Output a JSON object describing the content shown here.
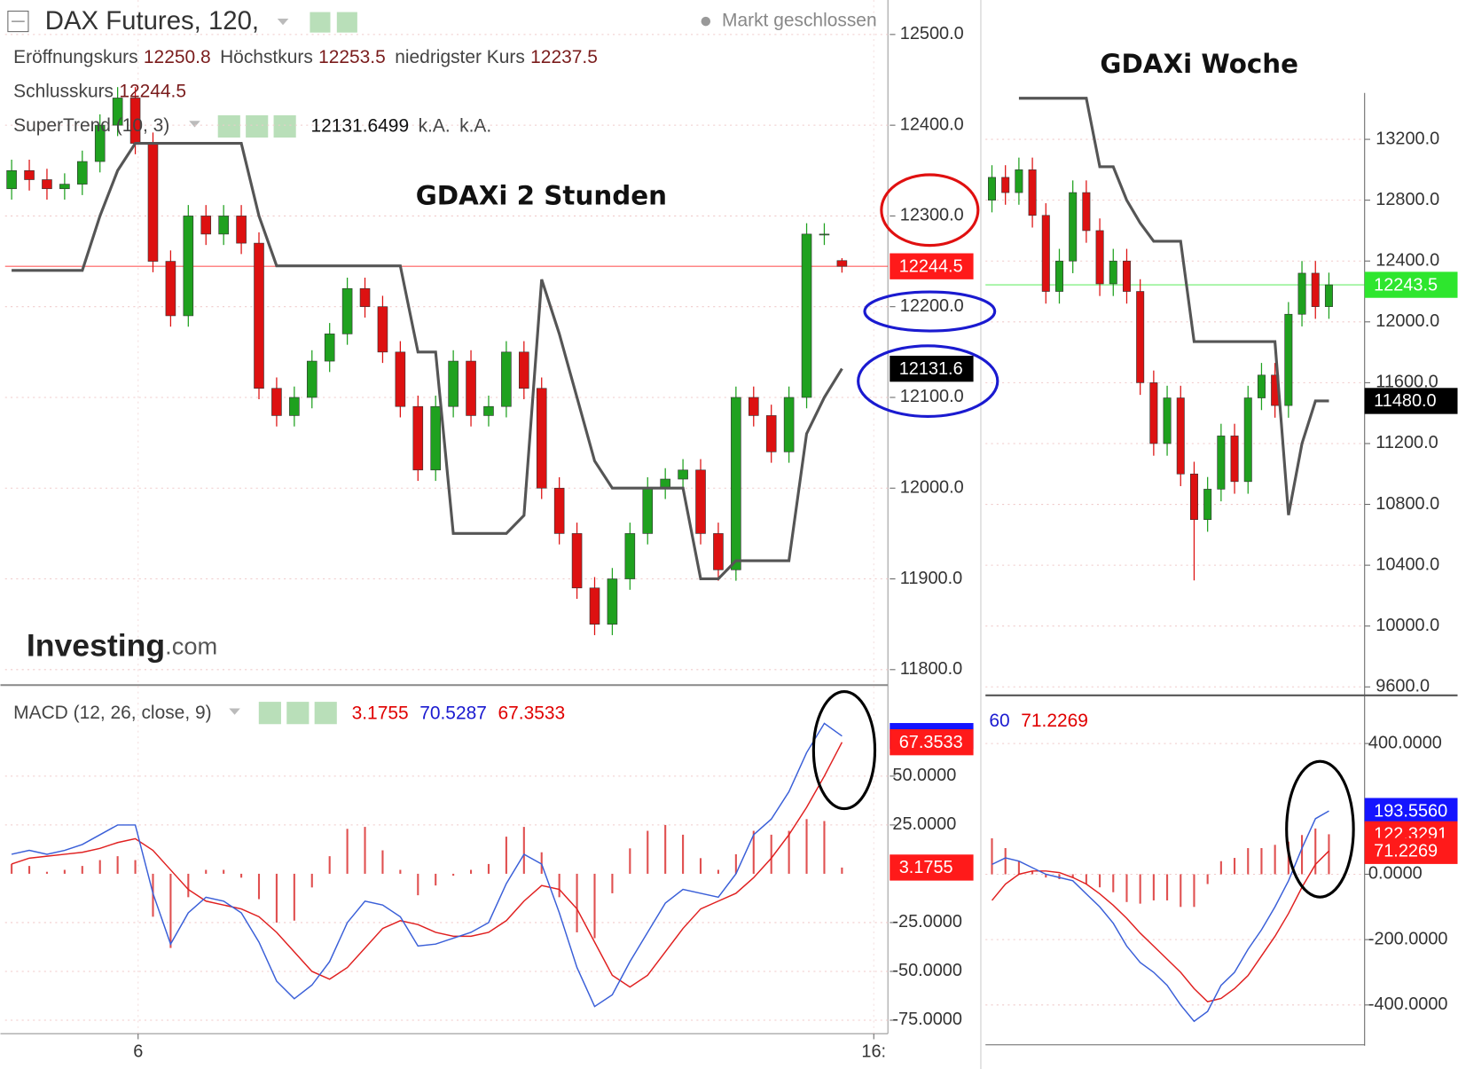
{
  "chart_data": [
    {
      "type": "candlestick",
      "title": "GDAXi 2 Stunden",
      "symbol": "DAX Futures, 120,",
      "status": "Markt geschlossen",
      "ohlc_readout": [
        {
          "label": "Eröffnungskurs",
          "value": 12250.8
        },
        {
          "label": "Höchstkurs",
          "value": 12253.5
        },
        {
          "label": "niedrigster Kurs",
          "value": 12237.5
        },
        {
          "label": "Schlusskurs",
          "value": 12244.5
        }
      ],
      "indicator": {
        "name": "SuperTrend (10, 3)",
        "value": 12131.6499,
        "notes": [
          "k.A.",
          "k.A."
        ]
      },
      "logo": {
        "brand": "Investing",
        "suffix": ".com"
      },
      "up_color": "#1fa11f",
      "down_color": "#dd1111",
      "x": [
        0,
        1,
        2,
        3,
        4,
        5,
        6,
        7,
        8,
        9,
        10,
        11,
        12,
        13,
        14,
        15,
        16,
        17,
        18,
        19,
        20,
        21,
        22,
        23,
        24,
        25,
        26,
        27,
        28,
        29,
        30,
        31,
        32,
        33,
        34,
        35,
        36,
        37,
        38,
        39,
        40,
        41,
        42,
        43,
        44,
        45,
        46,
        47
      ],
      "xlim": [
        -0.37,
        49.6
      ],
      "xticks": [
        {
          "value": 7.16,
          "label": "6"
        },
        {
          "value": 48.8,
          "label": "16:"
        }
      ],
      "open": [
        12330,
        12350,
        12340,
        12330,
        12335,
        12360,
        12400,
        12430,
        12380,
        12250,
        12190,
        12300,
        12280,
        12300,
        12270,
        12110,
        12080,
        12100,
        12140,
        12170,
        12220,
        12200,
        12150,
        12090,
        12020,
        12090,
        12140,
        12080,
        12090,
        12150,
        12110,
        12000,
        11950,
        11890,
        11850,
        11900,
        11950,
        12000,
        12010,
        12020,
        11950,
        11910,
        12100,
        12080,
        12040,
        12100,
        12280,
        12250.8
      ],
      "high": [
        12362,
        12362,
        12352,
        12347,
        12372,
        12412,
        12442,
        12442,
        12392,
        12262,
        12312,
        12312,
        12312,
        12312,
        12282,
        12122,
        12112,
        12152,
        12182,
        12232,
        12232,
        12212,
        12162,
        12102,
        12102,
        12152,
        12152,
        12102,
        12162,
        12162,
        12122,
        12012,
        11962,
        11902,
        11912,
        11962,
        12012,
        12022,
        12032,
        12032,
        11962,
        12112,
        12112,
        12092,
        12112,
        12292,
        12292,
        12253.5
      ],
      "low": [
        12318,
        12328,
        12318,
        12318,
        12323,
        12348,
        12388,
        12368,
        12238,
        12178,
        12178,
        12268,
        12268,
        12258,
        12098,
        12068,
        12068,
        12088,
        12128,
        12158,
        12188,
        12138,
        12078,
        12008,
        12008,
        12078,
        12068,
        12068,
        12078,
        12098,
        11988,
        11938,
        11878,
        11838,
        11838,
        11888,
        11938,
        11988,
        11998,
        11938,
        11898,
        11898,
        12068,
        12028,
        12028,
        12088,
        12268,
        12237.5
      ],
      "close": [
        12350,
        12340,
        12330,
        12335,
        12360,
        12400,
        12430,
        12380,
        12250,
        12190,
        12300,
        12280,
        12300,
        12270,
        12110,
        12080,
        12100,
        12140,
        12170,
        12220,
        12200,
        12150,
        12090,
        12020,
        12090,
        12140,
        12080,
        12090,
        12150,
        12110,
        12000,
        11950,
        11890,
        11850,
        11900,
        11950,
        12000,
        12010,
        12020,
        11950,
        11910,
        12100,
        12080,
        12040,
        12100,
        12280,
        12280,
        12244.5
      ],
      "supertrend": {
        "color": "#555555",
        "values": [
          12240,
          12240,
          12240,
          12240,
          12240,
          12300,
          12350,
          12380,
          12380,
          12380,
          12380,
          12380,
          12380,
          12380,
          12300,
          12245,
          12245,
          12245,
          12245,
          12245,
          12245,
          12245,
          12245,
          12150,
          12150,
          11950,
          11950,
          11950,
          11950,
          11970,
          12230,
          12170,
          12100,
          12030,
          12000,
          12000,
          12000,
          12000,
          12000,
          11900,
          11900,
          11920,
          11920,
          11920,
          11920,
          12060,
          12100,
          12131.6499
        ]
      },
      "ylim": [
        11785,
        12538
      ],
      "yticks": [
        {
          "value": 11800,
          "label": "11800.0"
        },
        {
          "value": 11900,
          "label": "11900.0"
        },
        {
          "value": 12000,
          "label": "12000.0"
        },
        {
          "value": 12100,
          "label": "12100.0"
        },
        {
          "value": 12200,
          "label": "12200.0"
        },
        {
          "value": 12300,
          "label": "12300.0"
        },
        {
          "value": 12400,
          "label": "12400.0"
        },
        {
          "value": 12500,
          "label": "12500.0"
        }
      ],
      "grid": true,
      "price_markers": [
        {
          "value": 12244.5,
          "color": "#ff1a1a",
          "line": true
        },
        {
          "value": 12131.6,
          "color": "#000000"
        }
      ],
      "macd": {
        "label": "MACD (12, 26, close, 9)",
        "readout": [
          3.1755,
          70.5287,
          67.3533
        ],
        "readout_colors": [
          "#e00000",
          "#1a1ad0",
          "#e00000"
        ],
        "histogram": {
          "color": "#e05050",
          "values": [
            5,
            4,
            1,
            2,
            4,
            7,
            9,
            7,
            -22,
            -38,
            -12,
            2,
            2,
            -2,
            -13,
            -25,
            -24,
            -7,
            9,
            23,
            24,
            12,
            2,
            -11,
            -6,
            -1,
            2,
            5,
            19,
            24,
            11,
            -12,
            -30,
            -33,
            -10,
            13,
            22,
            25,
            20,
            8,
            2,
            10,
            22,
            20,
            22,
            28,
            27,
            3.1755
          ]
        },
        "macd_line": {
          "color": "#3a5fd8",
          "values": [
            10,
            12,
            10,
            12,
            15,
            20,
            25,
            25,
            -10,
            -36,
            -20,
            -12,
            -14,
            -20,
            -35,
            -55,
            -64,
            -57,
            -45,
            -25,
            -14,
            -16,
            -22,
            -37,
            -36,
            -33,
            -30,
            -25,
            -5,
            10,
            5,
            -20,
            -48,
            -68,
            -62,
            -45,
            -30,
            -15,
            -8,
            -10,
            -12,
            0,
            20,
            28,
            42,
            62,
            77,
            70.5287
          ]
        },
        "signal": {
          "color": "#e02020",
          "values": [
            5,
            8,
            9,
            10,
            11,
            13,
            16,
            18,
            12,
            2,
            -8,
            -14,
            -16,
            -18,
            -22,
            -30,
            -40,
            -50,
            -54,
            -48,
            -38,
            -28,
            -24,
            -26,
            -30,
            -32,
            -32,
            -30,
            -24,
            -14,
            -6,
            -8,
            -18,
            -35,
            -52,
            -58,
            -52,
            -40,
            -28,
            -18,
            -14,
            -10,
            -2,
            8,
            20,
            34,
            50,
            67.3533
          ]
        },
        "ylim": [
          -81.9,
          95.2
        ],
        "yticks": [
          {
            "value": 50,
            "label": "50.0000"
          },
          {
            "value": 25,
            "label": "25.0000"
          },
          {
            "value": -25,
            "label": "-25.0000"
          },
          {
            "value": -50,
            "label": "-50.0000"
          },
          {
            "value": -75,
            "label": "-75.0000"
          }
        ],
        "markers": [
          {
            "value": 70.5287,
            "color": "#1414ff"
          },
          {
            "value": 67.3533,
            "color": "#ff1a1a"
          },
          {
            "value": 3.1755,
            "color": "#ff1a1a"
          }
        ]
      }
    },
    {
      "type": "candlestick",
      "title": "GDAXi Woche",
      "up_color": "#1fa11f",
      "down_color": "#dd1111",
      "x": [
        0,
        1,
        2,
        3,
        4,
        5,
        6,
        7,
        8,
        9,
        10,
        11,
        12,
        13,
        14,
        15,
        16,
        17,
        18,
        19,
        20,
        21,
        22,
        23,
        24,
        25
      ],
      "xlim": [
        -0.48,
        27.65
      ],
      "open": [
        12800,
        12950,
        12850,
        13000,
        12700,
        12200,
        12400,
        12850,
        12600,
        12250,
        12400,
        12200,
        11600,
        11200,
        11500,
        11000,
        10700,
        10900,
        11250,
        10950,
        11500,
        11650,
        11450,
        12050,
        12320,
        12100
      ],
      "high": [
        13030,
        13030,
        13080,
        13080,
        12780,
        12480,
        12930,
        12930,
        12680,
        12480,
        12480,
        12280,
        11680,
        11580,
        11580,
        11080,
        10980,
        11330,
        11330,
        11580,
        11730,
        11730,
        12130,
        12400,
        12400,
        12323.5
      ],
      "low": [
        12720,
        12770,
        12770,
        12620,
        12120,
        12120,
        12320,
        12520,
        12170,
        12170,
        12120,
        11520,
        11120,
        11120,
        10920,
        10300,
        10620,
        10820,
        10870,
        10870,
        11420,
        11370,
        11370,
        11970,
        12020,
        12020
      ],
      "close": [
        12950,
        12850,
        13000,
        12700,
        12200,
        12400,
        12850,
        12600,
        12250,
        12400,
        12200,
        11600,
        11200,
        11500,
        11000,
        10700,
        10900,
        11250,
        10950,
        11500,
        11650,
        11450,
        12050,
        12320,
        12100,
        12243.5
      ],
      "supertrend": {
        "color": "#555555",
        "values": [
          null,
          null,
          13470,
          13470,
          13470,
          13470,
          13470,
          13470,
          13020,
          13020,
          12800,
          12650,
          12530,
          12530,
          12530,
          11870,
          11870,
          11870,
          11870,
          11870,
          11870,
          11870,
          10730,
          11200,
          11480,
          11480
        ]
      },
      "ylim": [
        9563,
        13505
      ],
      "yticks": [
        {
          "value": 9600,
          "label": "9600.0"
        },
        {
          "value": 10000,
          "label": "10000.0"
        },
        {
          "value": 10400,
          "label": "10400.0"
        },
        {
          "value": 10800,
          "label": "10800.0"
        },
        {
          "value": 11200,
          "label": "11200.0"
        },
        {
          "value": 11600,
          "label": "11600.0"
        },
        {
          "value": 12000,
          "label": "12000.0"
        },
        {
          "value": 12400,
          "label": "12400.0"
        },
        {
          "value": 12800,
          "label": "12800.0"
        },
        {
          "value": 13200,
          "label": "13200.0"
        }
      ],
      "grid": true,
      "price_markers": [
        {
          "value": 12243.5,
          "color": "#2ee62e",
          "line": true
        },
        {
          "value": 11480,
          "label": "11480.0",
          "color": "#000000"
        }
      ],
      "macd": {
        "readout_clipped": "60",
        "readout_clipped_color": "#1a1ad0",
        "readout": [
          71.2269
        ],
        "readout_colors": [
          "#e00000"
        ],
        "histogram": {
          "color": "#e05050",
          "values": [
            110,
            80,
            40,
            10,
            -10,
            -15,
            -10,
            -30,
            -40,
            -55,
            -85,
            -90,
            -80,
            -80,
            -100,
            -100,
            -30,
            40,
            50,
            80,
            80,
            90,
            100,
            120,
            140,
            122.3291
          ]
        },
        "macd_line": {
          "color": "#3a5fd8",
          "values": [
            30,
            50,
            40,
            20,
            0,
            -10,
            -20,
            -60,
            -100,
            -150,
            -220,
            -270,
            -300,
            -340,
            -400,
            -450,
            -420,
            -340,
            -300,
            -230,
            -170,
            -100,
            -20,
            80,
            170,
            193.556
          ]
        },
        "signal": {
          "color": "#e02020",
          "values": [
            -80,
            -30,
            0,
            10,
            10,
            5,
            -10,
            -30,
            -60,
            -95,
            -135,
            -180,
            -220,
            -260,
            -300,
            -350,
            -390,
            -380,
            -350,
            -310,
            -250,
            -190,
            -120,
            -40,
            30,
            71.2269
          ]
        },
        "ylim": [
          -510.6,
          547.5
        ],
        "yticks": [
          {
            "value": 400,
            "label": "400.0000"
          },
          {
            "value": 0,
            "label": "0.0000"
          },
          {
            "value": -200,
            "label": "-200.0000"
          },
          {
            "value": -400,
            "label": "-400.0000"
          }
        ],
        "markers": [
          {
            "value": 193.556,
            "label": "193.5560",
            "color": "#1414ff"
          },
          {
            "value": 122.3291,
            "color": "#ff1a1a"
          },
          {
            "value": 71.2269,
            "color": "#ff1a1a"
          }
        ]
      }
    }
  ]
}
